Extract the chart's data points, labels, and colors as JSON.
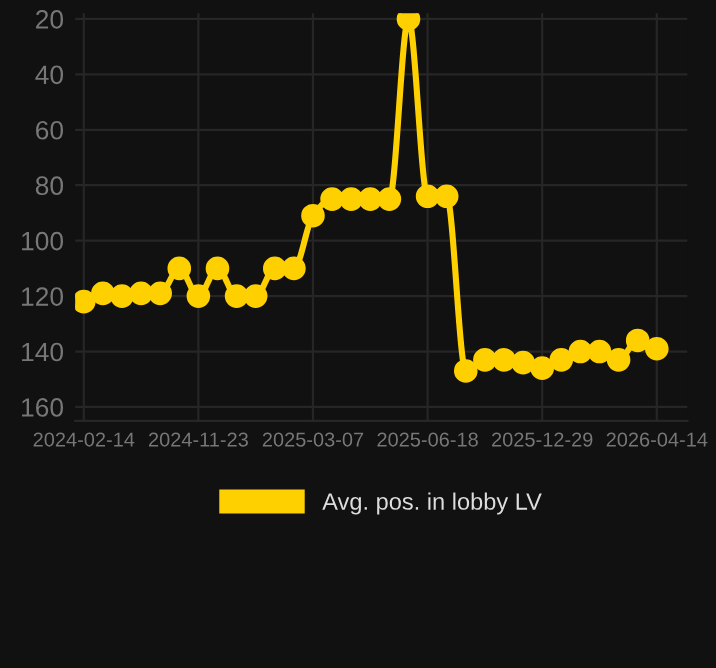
{
  "chart_data": {
    "type": "line",
    "categories": [
      "2024-02-14",
      null,
      null,
      null,
      null,
      null,
      "2024-11-23",
      null,
      null,
      null,
      null,
      null,
      "2025-03-07",
      null,
      null,
      null,
      null,
      null,
      "2025-06-18",
      null,
      null,
      null,
      null,
      null,
      "2025-12-29",
      null,
      null,
      null,
      null,
      null,
      "2026-04-14"
    ],
    "series": [
      {
        "name": "Avg. pos. in lobby LV",
        "color": "#ffd000",
        "values": [
          122,
          119,
          120,
          119,
          119,
          110,
          120,
          110,
          120,
          120,
          110,
          110,
          91,
          85,
          85,
          85,
          85,
          20,
          84,
          84,
          147,
          143,
          143,
          144,
          146,
          143,
          140,
          140,
          143,
          136,
          139
        ]
      }
    ],
    "ylim": [
      165,
      18
    ],
    "yticks": [
      20,
      40,
      60,
      80,
      100,
      120,
      140,
      160
    ],
    "grid": true,
    "legend": "bottom",
    "marker": "circle",
    "line_style": "solid"
  }
}
